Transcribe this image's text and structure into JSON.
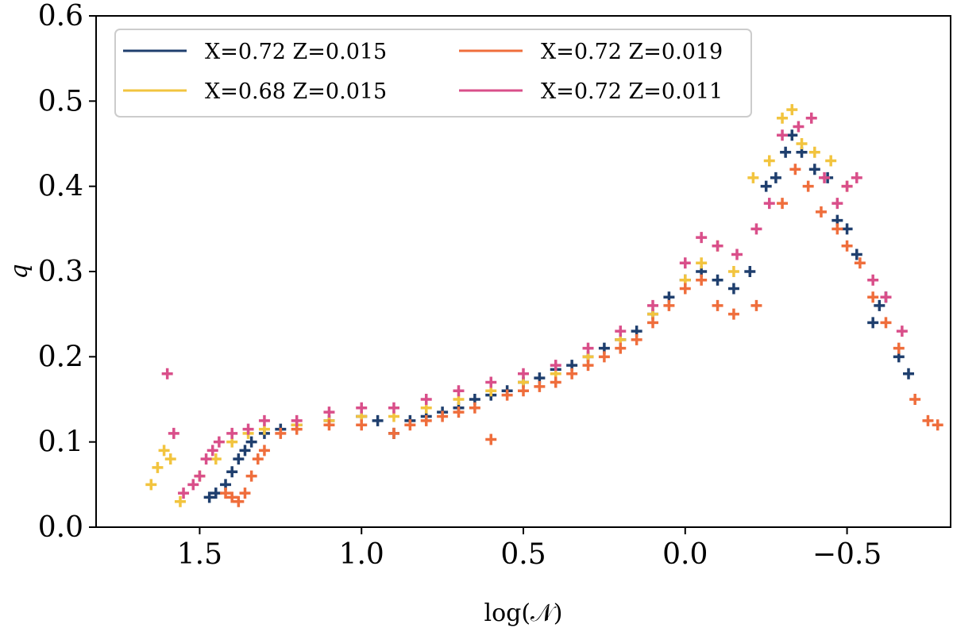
{
  "chart_data": {
    "type": "scatter",
    "title": "",
    "xlabel": "log(𝒩)",
    "ylabel": "q",
    "xlim": [
      1.82,
      -0.82
    ],
    "ylim": [
      0.0,
      0.6
    ],
    "x_inverted": true,
    "xticks": [
      1.5,
      1.0,
      0.5,
      0.0,
      -0.5
    ],
    "xtick_labels": [
      "1.5",
      "1.0",
      "0.5",
      "0.0",
      "−0.5"
    ],
    "yticks": [
      0.0,
      0.1,
      0.2,
      0.3,
      0.4,
      0.5,
      0.6
    ],
    "ytick_labels": [
      "0.0",
      "0.1",
      "0.2",
      "0.3",
      "0.4",
      "0.5",
      "0.6"
    ],
    "grid": false,
    "legend_position": "top-left",
    "legend_columns": 2,
    "marker": "plus",
    "series": [
      {
        "name": "X=0.72 Z=0.015",
        "color": "#1f3f6e",
        "points": [
          [
            1.47,
            0.035
          ],
          [
            1.45,
            0.04
          ],
          [
            1.42,
            0.05
          ],
          [
            1.4,
            0.065
          ],
          [
            1.38,
            0.08
          ],
          [
            1.36,
            0.09
          ],
          [
            1.34,
            0.1
          ],
          [
            1.3,
            0.11
          ],
          [
            1.25,
            0.115
          ],
          [
            1.2,
            0.12
          ],
          [
            1.1,
            0.125
          ],
          [
            1.0,
            0.13
          ],
          [
            0.95,
            0.125
          ],
          [
            0.9,
            0.11
          ],
          [
            0.85,
            0.125
          ],
          [
            0.8,
            0.13
          ],
          [
            0.75,
            0.135
          ],
          [
            0.7,
            0.14
          ],
          [
            0.65,
            0.15
          ],
          [
            0.6,
            0.155
          ],
          [
            0.55,
            0.16
          ],
          [
            0.5,
            0.17
          ],
          [
            0.45,
            0.175
          ],
          [
            0.4,
            0.185
          ],
          [
            0.35,
            0.19
          ],
          [
            0.3,
            0.2
          ],
          [
            0.25,
            0.21
          ],
          [
            0.2,
            0.22
          ],
          [
            0.15,
            0.23
          ],
          [
            0.1,
            0.25
          ],
          [
            0.05,
            0.27
          ],
          [
            0.0,
            0.29
          ],
          [
            -0.05,
            0.3
          ],
          [
            -0.1,
            0.29
          ],
          [
            -0.15,
            0.28
          ],
          [
            -0.2,
            0.3
          ],
          [
            -0.25,
            0.4
          ],
          [
            -0.28,
            0.41
          ],
          [
            -0.31,
            0.44
          ],
          [
            -0.33,
            0.46
          ],
          [
            -0.36,
            0.44
          ],
          [
            -0.4,
            0.42
          ],
          [
            -0.44,
            0.41
          ],
          [
            -0.47,
            0.36
          ],
          [
            -0.5,
            0.35
          ],
          [
            -0.53,
            0.32
          ],
          [
            -0.58,
            0.24
          ],
          [
            -0.6,
            0.26
          ],
          [
            -0.62,
            0.27
          ],
          [
            -0.66,
            0.2
          ],
          [
            -0.69,
            0.18
          ]
        ]
      },
      {
        "name": "X=0.68 Z=0.015",
        "color": "#f2c43f",
        "points": [
          [
            1.65,
            0.05
          ],
          [
            1.63,
            0.07
          ],
          [
            1.61,
            0.09
          ],
          [
            1.59,
            0.08
          ],
          [
            1.56,
            0.03
          ],
          [
            1.5,
            0.06
          ],
          [
            1.45,
            0.08
          ],
          [
            1.4,
            0.1
          ],
          [
            1.35,
            0.11
          ],
          [
            1.3,
            0.115
          ],
          [
            1.2,
            0.12
          ],
          [
            1.1,
            0.125
          ],
          [
            1.0,
            0.13
          ],
          [
            0.9,
            0.13
          ],
          [
            0.8,
            0.14
          ],
          [
            0.7,
            0.15
          ],
          [
            0.6,
            0.16
          ],
          [
            0.5,
            0.17
          ],
          [
            0.4,
            0.18
          ],
          [
            0.3,
            0.2
          ],
          [
            0.2,
            0.22
          ],
          [
            0.1,
            0.25
          ],
          [
            0.0,
            0.29
          ],
          [
            -0.05,
            0.31
          ],
          [
            -0.1,
            0.33
          ],
          [
            -0.15,
            0.3
          ],
          [
            -0.21,
            0.41
          ],
          [
            -0.26,
            0.43
          ],
          [
            -0.3,
            0.48
          ],
          [
            -0.33,
            0.49
          ],
          [
            -0.36,
            0.45
          ],
          [
            -0.4,
            0.44
          ],
          [
            -0.45,
            0.43
          ],
          [
            -0.5,
            0.4
          ]
        ]
      },
      {
        "name": "X=0.72 Z=0.019",
        "color": "#ef6e3c",
        "points": [
          [
            1.42,
            0.04
          ],
          [
            1.4,
            0.035
          ],
          [
            1.38,
            0.03
          ],
          [
            1.36,
            0.04
          ],
          [
            1.34,
            0.06
          ],
          [
            1.32,
            0.08
          ],
          [
            1.3,
            0.09
          ],
          [
            1.25,
            0.11
          ],
          [
            1.2,
            0.115
          ],
          [
            1.1,
            0.12
          ],
          [
            1.0,
            0.12
          ],
          [
            0.9,
            0.11
          ],
          [
            0.85,
            0.12
          ],
          [
            0.8,
            0.125
          ],
          [
            0.75,
            0.13
          ],
          [
            0.7,
            0.135
          ],
          [
            0.65,
            0.14
          ],
          [
            0.6,
            0.103
          ],
          [
            0.55,
            0.155
          ],
          [
            0.5,
            0.16
          ],
          [
            0.45,
            0.165
          ],
          [
            0.4,
            0.17
          ],
          [
            0.35,
            0.18
          ],
          [
            0.3,
            0.19
          ],
          [
            0.25,
            0.2
          ],
          [
            0.2,
            0.21
          ],
          [
            0.15,
            0.22
          ],
          [
            0.1,
            0.24
          ],
          [
            0.05,
            0.26
          ],
          [
            0.0,
            0.28
          ],
          [
            -0.05,
            0.29
          ],
          [
            -0.1,
            0.26
          ],
          [
            -0.15,
            0.25
          ],
          [
            -0.22,
            0.26
          ],
          [
            -0.3,
            0.38
          ],
          [
            -0.34,
            0.42
          ],
          [
            -0.38,
            0.4
          ],
          [
            -0.42,
            0.37
          ],
          [
            -0.47,
            0.35
          ],
          [
            -0.5,
            0.33
          ],
          [
            -0.54,
            0.31
          ],
          [
            -0.58,
            0.27
          ],
          [
            -0.62,
            0.24
          ],
          [
            -0.66,
            0.21
          ],
          [
            -0.71,
            0.15
          ],
          [
            -0.75,
            0.125
          ],
          [
            -0.78,
            0.12
          ]
        ]
      },
      {
        "name": "X=0.72 Z=0.011",
        "color": "#d94f8a",
        "points": [
          [
            1.6,
            0.18
          ],
          [
            1.58,
            0.11
          ],
          [
            1.55,
            0.04
          ],
          [
            1.52,
            0.05
          ],
          [
            1.5,
            0.06
          ],
          [
            1.48,
            0.08
          ],
          [
            1.46,
            0.09
          ],
          [
            1.44,
            0.1
          ],
          [
            1.4,
            0.11
          ],
          [
            1.35,
            0.115
          ],
          [
            1.3,
            0.125
          ],
          [
            1.2,
            0.125
          ],
          [
            1.1,
            0.135
          ],
          [
            1.0,
            0.14
          ],
          [
            0.9,
            0.14
          ],
          [
            0.8,
            0.15
          ],
          [
            0.7,
            0.16
          ],
          [
            0.6,
            0.17
          ],
          [
            0.5,
            0.18
          ],
          [
            0.4,
            0.19
          ],
          [
            0.3,
            0.21
          ],
          [
            0.2,
            0.23
          ],
          [
            0.1,
            0.26
          ],
          [
            0.0,
            0.31
          ],
          [
            -0.05,
            0.34
          ],
          [
            -0.1,
            0.33
          ],
          [
            -0.16,
            0.32
          ],
          [
            -0.22,
            0.35
          ],
          [
            -0.26,
            0.38
          ],
          [
            -0.3,
            0.46
          ],
          [
            -0.35,
            0.47
          ],
          [
            -0.39,
            0.48
          ],
          [
            -0.43,
            0.41
          ],
          [
            -0.47,
            0.38
          ],
          [
            -0.5,
            0.4
          ],
          [
            -0.53,
            0.41
          ],
          [
            -0.58,
            0.29
          ],
          [
            -0.62,
            0.27
          ],
          [
            -0.67,
            0.23
          ]
        ]
      }
    ]
  }
}
